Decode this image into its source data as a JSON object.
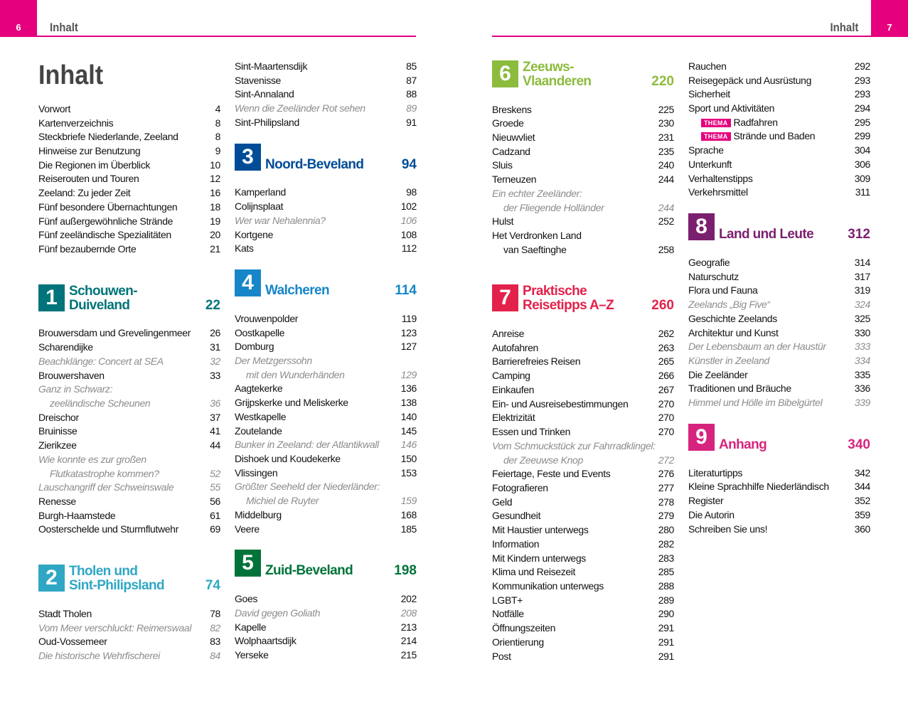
{
  "left_page": {
    "page_number": 6,
    "header": "Inhalt",
    "title": "Inhalt",
    "columns": [
      [
        {
          "text": "Vorwort",
          "page": 4
        },
        {
          "text": "Kartenverzeichnis",
          "page": 8
        },
        {
          "text": "Steckbriefe Niederlande, Zeeland",
          "page": 8
        },
        {
          "text": "Hinweise zur Benutzung",
          "page": 9
        },
        {
          "text": "Die Regionen im Überblick",
          "page": 10
        },
        {
          "text": "Reiserouten und Touren",
          "page": 12
        },
        {
          "text": "Zeeland: Zu jeder Zeit",
          "page": 16
        },
        {
          "text": "Fünf besondere Übernachtungen",
          "page": 18
        },
        {
          "text": "Fünf außergewöhnliche Strände",
          "page": 19
        },
        {
          "text": "Fünf zeeländische Spezialitäten",
          "page": 20
        },
        {
          "text": "Fünf bezaubernde Orte",
          "page": 21
        },
        {
          "section": 1,
          "title": [
            "Schouwen-",
            "Duiveland"
          ],
          "page": 22,
          "color": "#00747a"
        },
        {
          "text": "Brouwersdam und Grevelingenmeer",
          "page": 26
        },
        {
          "text": "Scharendijke",
          "page": 31
        },
        {
          "text": "Beachklänge: Concert at SEA",
          "page": 32,
          "style": "italic"
        },
        {
          "text": "Brouwershaven",
          "page": 33
        },
        {
          "lines": [
            "Ganz in Schwarz:",
            "zeeländische Scheunen"
          ],
          "page": 36,
          "style": "italic"
        },
        {
          "text": "Dreischor",
          "page": 37
        },
        {
          "text": "Bruinisse",
          "page": 41
        },
        {
          "text": "Zierikzee",
          "page": 44
        },
        {
          "lines": [
            "Wie konnte es zur großen",
            "Flutkatastrophe kommen?"
          ],
          "page": 52,
          "style": "italic"
        },
        {
          "text": "Lauschangriff der Schweinswale",
          "page": 55,
          "style": "italic"
        },
        {
          "text": "Renesse",
          "page": 56
        },
        {
          "text": "Burgh-Haamstede",
          "page": 61
        },
        {
          "text": "Oosterschelde und Sturmflutwehr",
          "page": 69
        },
        {
          "section": 2,
          "title": [
            "Tholen und",
            "Sint-Philipsland"
          ],
          "page": 74,
          "color": "#2fa7c4"
        },
        {
          "text": "Stadt Tholen",
          "page": 78
        },
        {
          "text": "Vom Meer verschluckt: Reimerswaal",
          "page": 82,
          "style": "italic"
        },
        {
          "text": "Oud-Vossemeer",
          "page": 83
        },
        {
          "text": "Die historische Wehrfischerei",
          "page": 84,
          "style": "italic"
        }
      ],
      [
        {
          "text": "Sint-Maartensdijk",
          "page": 85
        },
        {
          "text": "Stavenisse",
          "page": 87
        },
        {
          "text": "Sint-Annaland",
          "page": 88
        },
        {
          "text": "Wenn die Zeeländer Rot sehen",
          "page": 89,
          "style": "italic"
        },
        {
          "text": "Sint-Philipsland",
          "page": 91
        },
        {
          "section": 3,
          "title": [
            "Noord-Beveland"
          ],
          "page": 94,
          "color": "#004c97"
        },
        {
          "text": "Kamperland",
          "page": 98
        },
        {
          "text": "Colijnsplaat",
          "page": 102
        },
        {
          "text": "Wer war Nehalennia?",
          "page": 106,
          "style": "italic"
        },
        {
          "text": "Kortgene",
          "page": 108
        },
        {
          "text": "Kats",
          "page": 112
        },
        {
          "section": 4,
          "title": [
            "Walcheren"
          ],
          "page": 114,
          "color": "#1686c8"
        },
        {
          "text": "Vrouwenpolder",
          "page": 119
        },
        {
          "text": "Oostkapelle",
          "page": 123
        },
        {
          "text": "Domburg",
          "page": 127
        },
        {
          "lines": [
            "Der Metzgerssohn",
            "mit den Wunderhänden"
          ],
          "page": 129,
          "style": "italic"
        },
        {
          "text": "Aagtekerke",
          "page": 136
        },
        {
          "text": "Grijpskerke und Meliskerke",
          "page": 138
        },
        {
          "text": "Westkapelle",
          "page": 140
        },
        {
          "text": "Zoutelande",
          "page": 145
        },
        {
          "text": "Bunker in Zeeland: der Atlantikwall",
          "page": 146,
          "style": "italic"
        },
        {
          "text": "Dishoek und Koudekerke",
          "page": 150
        },
        {
          "text": "Vlissingen",
          "page": 153
        },
        {
          "lines": [
            "Größter Seeheld der Niederländer:",
            "Michiel de Ruyter"
          ],
          "page": 159,
          "style": "italic"
        },
        {
          "text": "Middelburg",
          "page": 168
        },
        {
          "text": "Veere",
          "page": 185
        },
        {
          "section": 5,
          "title": [
            "Zuid-Beveland"
          ],
          "page": 198,
          "color": "#00733a"
        },
        {
          "text": "Goes",
          "page": 202
        },
        {
          "text": "David gegen Goliath",
          "page": 208,
          "style": "italic"
        },
        {
          "text": "Kapelle",
          "page": 213
        },
        {
          "text": "Wolphaartsdijk",
          "page": 214
        },
        {
          "text": "Yerseke",
          "page": 215
        }
      ]
    ]
  },
  "right_page": {
    "page_number": 7,
    "header": "Inhalt",
    "columns": [
      [
        {
          "section": 6,
          "title": [
            "Zeeuws-",
            "Vlaanderen"
          ],
          "page": 220,
          "color": "#8dbb3e"
        },
        {
          "text": "Breskens",
          "page": 225
        },
        {
          "text": "Groede",
          "page": 230
        },
        {
          "text": "Nieuwvliet",
          "page": 231
        },
        {
          "text": "Cadzand",
          "page": 235
        },
        {
          "text": "Sluis",
          "page": 240
        },
        {
          "text": "Terneuzen",
          "page": 244
        },
        {
          "lines": [
            "Ein echter Zeeländer:",
            "der Fliegende Holländer"
          ],
          "page": 244,
          "style": "italic"
        },
        {
          "text": "Hulst",
          "page": 252
        },
        {
          "lines": [
            "Het Verdronken Land",
            "van Saeftinghe"
          ],
          "page": 258
        },
        {
          "section": 7,
          "title": [
            "Praktische",
            "Reisetipps A–Z"
          ],
          "page": 260,
          "color": "#e3224b"
        },
        {
          "text": "Anreise",
          "page": 262
        },
        {
          "text": "Autofahren",
          "page": 263
        },
        {
          "text": "Barrierefreies Reisen",
          "page": 265
        },
        {
          "text": "Camping",
          "page": 266
        },
        {
          "text": "Einkaufen",
          "page": 267
        },
        {
          "text": "Ein- und Ausreisebestimmungen",
          "page": 270
        },
        {
          "text": "Elektrizität",
          "page": 270
        },
        {
          "text": "Essen und Trinken",
          "page": 270
        },
        {
          "lines": [
            "Vom Schmuckstück zur Fahrradklingel:",
            "der Zeeuwse Knop"
          ],
          "page": 272,
          "style": "italic"
        },
        {
          "text": "Feiertage, Feste und Events",
          "page": 276
        },
        {
          "text": "Fotografieren",
          "page": 277
        },
        {
          "text": "Geld",
          "page": 278
        },
        {
          "text": "Gesundheit",
          "page": 279
        },
        {
          "text": "Mit Haustier unterwegs",
          "page": 280
        },
        {
          "text": "Information",
          "page": 282
        },
        {
          "text": "Mit Kindern unterwegs",
          "page": 283
        },
        {
          "text": "Klima und Reisezeit",
          "page": 285
        },
        {
          "text": "Kommunikation unterwegs",
          "page": 288
        },
        {
          "text": "LGBT+",
          "page": 289
        },
        {
          "text": "Notfälle",
          "page": 290
        },
        {
          "text": "Öffnungszeiten",
          "page": 291
        },
        {
          "text": "Orientierung",
          "page": 291
        },
        {
          "text": "Post",
          "page": 291
        }
      ],
      [
        {
          "text": "Rauchen",
          "page": 292
        },
        {
          "text": "Reisegepäck und Ausrüstung",
          "page": 293
        },
        {
          "text": "Sicherheit",
          "page": 293
        },
        {
          "text": "Sport und Aktivitäten",
          "page": 294
        },
        {
          "tag": "THEMA",
          "text": "Radfahren",
          "page": 295
        },
        {
          "tag": "THEMA",
          "text": "Strände und Baden",
          "page": 299
        },
        {
          "text": "Sprache",
          "page": 304
        },
        {
          "text": "Unterkunft",
          "page": 306
        },
        {
          "text": "Verhaltenstipps",
          "page": 309
        },
        {
          "text": "Verkehrsmittel",
          "page": 311
        },
        {
          "section": 8,
          "title": [
            "Land und Leute"
          ],
          "page": 312,
          "color": "#7b1f6f"
        },
        {
          "text": "Geografie",
          "page": 314
        },
        {
          "text": "Naturschutz",
          "page": 317
        },
        {
          "text": "Flora und Fauna",
          "page": 319
        },
        {
          "text": "Zeelands „Big Five“",
          "page": 324,
          "style": "italic"
        },
        {
          "text": "Geschichte Zeelands",
          "page": 325
        },
        {
          "text": "Architektur und Kunst",
          "page": 330
        },
        {
          "text": "Der Lebensbaum an der Haustür",
          "page": 333,
          "style": "italic"
        },
        {
          "text": "Künstler in Zeeland",
          "page": 334,
          "style": "italic"
        },
        {
          "text": "Die Zeeländer",
          "page": 335
        },
        {
          "text": "Traditionen und Bräuche",
          "page": 336
        },
        {
          "text": "Himmel und Hölle im Bibelgürtel",
          "page": 339,
          "style": "italic"
        },
        {
          "section": 9,
          "title": [
            "Anhang"
          ],
          "page": 340,
          "color": "#d6247e"
        },
        {
          "text": "Literaturtipps",
          "page": 342
        },
        {
          "text": "Kleine Sprachhilfe Niederländisch",
          "page": 344
        },
        {
          "text": "Register",
          "page": 352
        },
        {
          "text": "Die Autorin",
          "page": 359
        },
        {
          "text": "Schreiben Sie uns!",
          "page": 360
        }
      ]
    ]
  }
}
